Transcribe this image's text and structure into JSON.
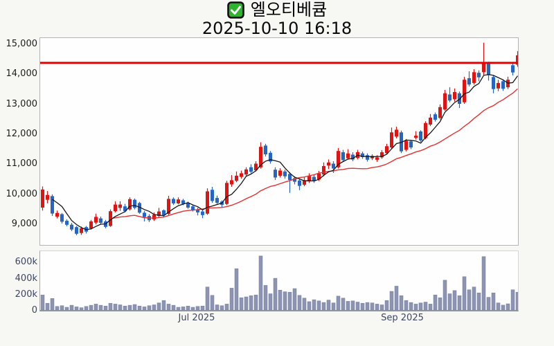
{
  "title": {
    "stock_name": "엘오티베큠",
    "datetime": "2025-10-10 16:18",
    "checkbox_icon": "green-checkbox"
  },
  "colors": {
    "up": "#e01212",
    "down": "#2565c5",
    "ma_fast": "#141414",
    "ma_slow": "#e53030",
    "hline": "#e70000",
    "volume_bar": "#8c94b1",
    "volume_bar_border": "#747d9c",
    "checkbox_green": "#2db52d",
    "checkbox_border": "#101010"
  },
  "chart_data": {
    "type": "candlestick_with_volume",
    "title": "엘오티베큠",
    "subtitle": "2025-10-10 16:18",
    "legend_position": "none",
    "grid": false,
    "price_axis": {
      "ticks": [
        "15,000",
        "14,000",
        "13,000",
        "12,000",
        "11,000",
        "10,000",
        "9,000"
      ],
      "values": [
        15000,
        14000,
        13000,
        12000,
        11000,
        10000,
        9000
      ],
      "range": [
        8317,
        15195
      ]
    },
    "volume_axis": {
      "ticks": [
        "600k",
        "400k",
        "200k",
        "0"
      ],
      "values_k": [
        600,
        400,
        200,
        0
      ],
      "range_k": [
        0,
        740
      ]
    },
    "time_axis": {
      "labels": [
        {
          "text": "Jul 2025"
        },
        {
          "text": "Sep 2025"
        }
      ],
      "label_candle_index": [
        32,
        75
      ]
    },
    "horizontal_line_price": 14370,
    "ma_periods": {
      "fast": 5,
      "slow": 20
    },
    "candles_ohlc": [
      [
        9560,
        10260,
        9460,
        10160
      ],
      [
        9820,
        10110,
        9700,
        9980
      ],
      [
        9940,
        10000,
        9280,
        9360
      ],
      [
        9260,
        9460,
        9200,
        9380
      ],
      [
        9340,
        9380,
        9030,
        9090
      ],
      [
        9120,
        9170,
        8940,
        8990
      ],
      [
        8990,
        9050,
        8780,
        8830
      ],
      [
        8910,
        8950,
        8640,
        8690
      ],
      [
        8715,
        8930,
        8650,
        8870
      ],
      [
        8910,
        8950,
        8700,
        8760
      ],
      [
        8870,
        9150,
        8830,
        9100
      ],
      [
        9060,
        9360,
        9000,
        9250
      ],
      [
        9200,
        9260,
        9000,
        9050
      ],
      [
        9100,
        9150,
        8870,
        8920
      ],
      [
        8950,
        9500,
        8920,
        9440
      ],
      [
        9440,
        9770,
        9400,
        9660
      ],
      [
        9550,
        9770,
        9450,
        9660
      ],
      [
        9600,
        9680,
        9400,
        9440
      ],
      [
        9500,
        9900,
        9460,
        9840
      ],
      [
        9820,
        9860,
        9500,
        9550
      ],
      [
        9710,
        9750,
        9350,
        9390
      ],
      [
        9390,
        9450,
        9100,
        9250
      ],
      [
        9280,
        9340,
        9080,
        9140
      ],
      [
        9170,
        9400,
        9120,
        9320
      ],
      [
        9280,
        9550,
        9240,
        9430
      ],
      [
        9470,
        9500,
        9260,
        9310
      ],
      [
        9350,
        9950,
        9310,
        9850
      ],
      [
        9850,
        9900,
        9650,
        9700
      ],
      [
        9700,
        9900,
        9670,
        9830
      ],
      [
        9800,
        9850,
        9640,
        9680
      ],
      [
        9720,
        9760,
        9520,
        9560
      ],
      [
        9600,
        9650,
        9430,
        9470
      ],
      [
        9500,
        9560,
        9300,
        9400
      ],
      [
        9430,
        9480,
        9210,
        9310
      ],
      [
        9360,
        10200,
        9320,
        10100
      ],
      [
        10150,
        10250,
        9720,
        9780
      ],
      [
        9880,
        9960,
        9680,
        9720
      ],
      [
        9760,
        9800,
        9560,
        9650
      ],
      [
        9680,
        10450,
        9640,
        10380
      ],
      [
        10330,
        10640,
        10250,
        10470
      ],
      [
        10450,
        10760,
        10400,
        10620
      ],
      [
        10580,
        10790,
        10520,
        10700
      ],
      [
        10660,
        10900,
        10610,
        10830
      ],
      [
        10900,
        11000,
        10700,
        10750
      ],
      [
        10800,
        11100,
        10760,
        11020
      ],
      [
        10900,
        11730,
        10860,
        11580
      ],
      [
        11620,
        11680,
        11260,
        11330
      ],
      [
        11380,
        11440,
        11020,
        11090
      ],
      [
        10820,
        10900,
        10480,
        10560
      ],
      [
        10620,
        10870,
        10560,
        10790
      ],
      [
        10760,
        10820,
        10520,
        10600
      ],
      [
        10680,
        10740,
        10050,
        10480
      ],
      [
        10540,
        10600,
        10330,
        10420
      ],
      [
        10460,
        10520,
        10140,
        10280
      ],
      [
        10320,
        10570,
        10270,
        10470
      ],
      [
        10430,
        10700,
        10380,
        10610
      ],
      [
        10580,
        10640,
        10380,
        10440
      ],
      [
        10490,
        10780,
        10440,
        10690
      ],
      [
        10660,
        11060,
        10600,
        10940
      ],
      [
        10960,
        11160,
        10840,
        11060
      ],
      [
        11020,
        11100,
        10710,
        10860
      ],
      [
        10900,
        11540,
        10860,
        11440
      ],
      [
        11400,
        11480,
        11080,
        11140
      ],
      [
        11200,
        11500,
        11150,
        11360
      ],
      [
        11320,
        11400,
        11100,
        11160
      ],
      [
        11210,
        11480,
        11160,
        11400
      ],
      [
        11360,
        11420,
        11180,
        11240
      ],
      [
        11300,
        11360,
        11090,
        11150
      ],
      [
        11200,
        11330,
        11140,
        11280
      ],
      [
        11150,
        11300,
        11080,
        11230
      ],
      [
        11230,
        11470,
        11180,
        11400
      ],
      [
        11370,
        11680,
        11330,
        11600
      ],
      [
        11560,
        12220,
        11520,
        12060
      ],
      [
        11920,
        12250,
        11860,
        12150
      ],
      [
        12060,
        12120,
        11370,
        11430
      ],
      [
        11480,
        11840,
        11430,
        11780
      ],
      [
        11760,
        11800,
        11500,
        11560
      ],
      [
        11880,
        12100,
        11820,
        11950
      ],
      [
        12090,
        12130,
        11740,
        11790
      ],
      [
        11870,
        12430,
        11830,
        12370
      ],
      [
        12320,
        12670,
        12270,
        12550
      ],
      [
        12660,
        12720,
        12420,
        12480
      ],
      [
        12540,
        12990,
        12490,
        12900
      ],
      [
        12820,
        13470,
        12780,
        13360
      ],
      [
        13320,
        13560,
        13060,
        13120
      ],
      [
        13160,
        13520,
        13080,
        13400
      ],
      [
        13360,
        13420,
        12870,
        13010
      ],
      [
        13060,
        13910,
        13010,
        13810
      ],
      [
        13860,
        14090,
        13590,
        13650
      ],
      [
        13700,
        14160,
        13650,
        14060
      ],
      [
        14040,
        14120,
        13760,
        13890
      ],
      [
        14060,
        15040,
        13970,
        14360
      ],
      [
        14350,
        14410,
        13780,
        13960
      ],
      [
        13900,
        13960,
        13360,
        13500
      ],
      [
        13520,
        13810,
        13430,
        13700
      ],
      [
        13760,
        13820,
        13440,
        13510
      ],
      [
        13560,
        13910,
        13500,
        13810
      ],
      [
        14290,
        14350,
        13950,
        14050
      ],
      [
        14310,
        14760,
        14240,
        14620
      ]
    ],
    "volumes_k": [
      190,
      85,
      145,
      45,
      55,
      35,
      60,
      40,
      30,
      45,
      60,
      75,
      60,
      50,
      85,
      75,
      65,
      50,
      60,
      70,
      50,
      40,
      55,
      65,
      90,
      120,
      75,
      60,
      35,
      40,
      50,
      35,
      45,
      50,
      290,
      185,
      65,
      55,
      75,
      275,
      520,
      155,
      165,
      180,
      190,
      680,
      310,
      205,
      400,
      250,
      230,
      225,
      270,
      185,
      150,
      105,
      130,
      115,
      95,
      125,
      90,
      175,
      150,
      110,
      115,
      100,
      85,
      95,
      90,
      75,
      65,
      120,
      235,
      300,
      180,
      120,
      95,
      75,
      90,
      100,
      75,
      190,
      155,
      375,
      205,
      245,
      180,
      420,
      255,
      290,
      215,
      672,
      160,
      215,
      90,
      62,
      78,
      255,
      225
    ]
  }
}
